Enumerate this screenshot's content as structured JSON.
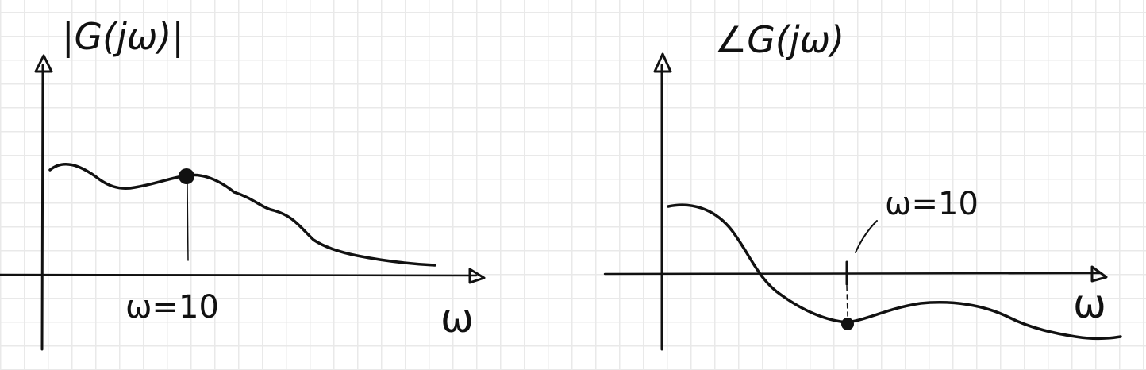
{
  "left_plot": {
    "y_label": "|G(jω)|",
    "x_label": "ω",
    "marker_label": "ω=10"
  },
  "right_plot": {
    "y_label": "∠G(jω)",
    "x_label": "ω",
    "marker_label": "ω=10"
  },
  "colors": {
    "ink": "#111111",
    "grid": "#e9e9e9",
    "paper": "#ffffff"
  }
}
